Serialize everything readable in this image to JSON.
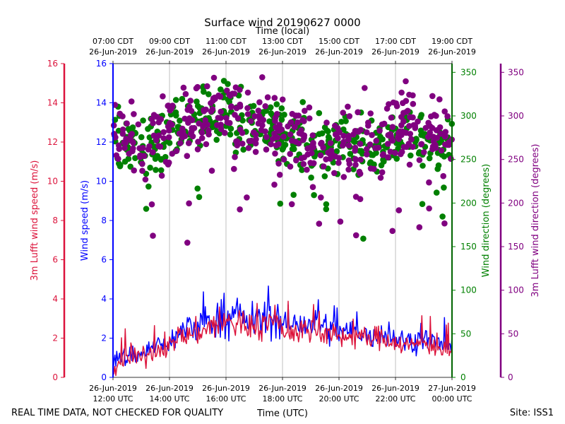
{
  "chart_data": {
    "type": "scatter",
    "title": "Surface wind 20190627 0000",
    "top_axis_label": "Time (local)",
    "bottom_axis_label": "Time (UTC)",
    "footer_left": "REAL TIME DATA, NOT CHECKED FOR QUALITY",
    "footer_right": "Site: ISS1",
    "x_range_utc_hours": [
      12,
      24
    ],
    "bottom_ticks": [
      {
        "t": 12,
        "date": "26-Jun-2019",
        "time": "12:00 UTC"
      },
      {
        "t": 14,
        "date": "26-Jun-2019",
        "time": "14:00 UTC"
      },
      {
        "t": 16,
        "date": "26-Jun-2019",
        "time": "16:00 UTC"
      },
      {
        "t": 18,
        "date": "26-Jun-2019",
        "time": "18:00 UTC"
      },
      {
        "t": 20,
        "date": "26-Jun-2019",
        "time": "20:00 UTC"
      },
      {
        "t": 22,
        "date": "26-Jun-2019",
        "time": "22:00 UTC"
      },
      {
        "t": 24,
        "date": "27-Jun-2019",
        "time": "00:00 UTC"
      }
    ],
    "top_ticks": [
      {
        "t": 12,
        "time": "07:00 CDT",
        "date": "26-Jun-2019"
      },
      {
        "t": 14,
        "time": "09:00 CDT",
        "date": "26-Jun-2019"
      },
      {
        "t": 16,
        "time": "11:00 CDT",
        "date": "26-Jun-2019"
      },
      {
        "t": 18,
        "time": "13:00 CDT",
        "date": "26-Jun-2019"
      },
      {
        "t": 20,
        "time": "15:00 CDT",
        "date": "26-Jun-2019"
      },
      {
        "t": 22,
        "time": "17:00 CDT",
        "date": "26-Jun-2019"
      },
      {
        "t": 24,
        "time": "19:00 CDT",
        "date": "26-Jun-2019"
      }
    ],
    "axes": {
      "lufft_speed": {
        "label": "3m Lufft wind speed (m/s)",
        "range": [
          0,
          16
        ],
        "ticks": [
          "0",
          "2",
          "4",
          "6",
          "8",
          "10",
          "12",
          "14",
          "16"
        ],
        "color": "#dc143c"
      },
      "speed": {
        "label": "Wind speed (m/s)",
        "range": [
          0,
          16
        ],
        "ticks": [
          "0",
          "2",
          "4",
          "6",
          "8",
          "10",
          "12",
          "14",
          "16"
        ],
        "color": "#0000ff"
      },
      "direction": {
        "label": "Wind direction (degrees)",
        "range": [
          0,
          360
        ],
        "ticks": [
          "0",
          "50",
          "100",
          "150",
          "200",
          "250",
          "300",
          "350"
        ],
        "color": "#008000"
      },
      "lufft_direction": {
        "label": "3m Lufft wind direction (degrees)",
        "range": [
          0,
          360
        ],
        "ticks": [
          "0",
          "50",
          "100",
          "150",
          "200",
          "250",
          "300",
          "350"
        ],
        "color": "#800080"
      }
    },
    "series": [
      {
        "name": "Wind speed (m/s)",
        "kind": "line",
        "axis": "speed",
        "color": "#0000ff",
        "envelope": [
          [
            12.0,
            0.7
          ],
          [
            12.5,
            1.1
          ],
          [
            13.0,
            1.2
          ],
          [
            13.5,
            1.6
          ],
          [
            14.0,
            1.8
          ],
          [
            14.5,
            2.4
          ],
          [
            15.0,
            2.6
          ],
          [
            15.5,
            2.9
          ],
          [
            16.0,
            3.1
          ],
          [
            16.5,
            3.0
          ],
          [
            17.0,
            2.9
          ],
          [
            17.5,
            3.1
          ],
          [
            18.0,
            2.8
          ],
          [
            18.5,
            2.6
          ],
          [
            19.0,
            2.8
          ],
          [
            19.5,
            2.6
          ],
          [
            20.0,
            2.2
          ],
          [
            20.5,
            2.4
          ],
          [
            21.0,
            2.1
          ],
          [
            21.5,
            2.3
          ],
          [
            22.0,
            2.0
          ],
          [
            22.5,
            1.8
          ],
          [
            23.0,
            2.0
          ],
          [
            23.5,
            1.7
          ],
          [
            24.0,
            1.5
          ]
        ]
      },
      {
        "name": "3m Lufft wind speed (m/s)",
        "kind": "line",
        "axis": "lufft_speed",
        "color": "#dc143c",
        "envelope": [
          [
            12.0,
            0.6
          ],
          [
            12.5,
            0.9
          ],
          [
            13.0,
            1.0
          ],
          [
            13.5,
            1.4
          ],
          [
            14.0,
            1.6
          ],
          [
            14.5,
            2.1
          ],
          [
            15.0,
            2.3
          ],
          [
            15.5,
            2.6
          ],
          [
            16.0,
            2.8
          ],
          [
            16.5,
            2.7
          ],
          [
            17.0,
            2.6
          ],
          [
            17.5,
            2.8
          ],
          [
            18.0,
            2.5
          ],
          [
            18.5,
            2.3
          ],
          [
            19.0,
            2.5
          ],
          [
            19.5,
            2.3
          ],
          [
            20.0,
            2.0
          ],
          [
            20.5,
            2.2
          ],
          [
            21.0,
            1.9
          ],
          [
            21.5,
            2.1
          ],
          [
            22.0,
            1.8
          ],
          [
            22.5,
            1.6
          ],
          [
            23.0,
            1.8
          ],
          [
            23.5,
            1.5
          ],
          [
            24.0,
            1.3
          ]
        ]
      },
      {
        "name": "Wind direction (degrees)",
        "kind": "scatter",
        "axis": "direction",
        "color": "#008000",
        "envelope": [
          [
            12.0,
            275
          ],
          [
            12.5,
            270
          ],
          [
            13.0,
            262
          ],
          [
            13.5,
            268
          ],
          [
            14.0,
            282
          ],
          [
            14.5,
            292
          ],
          [
            15.0,
            295
          ],
          [
            15.5,
            300
          ],
          [
            16.0,
            300
          ],
          [
            16.5,
            295
          ],
          [
            17.0,
            290
          ],
          [
            17.5,
            285
          ],
          [
            18.0,
            278
          ],
          [
            18.5,
            275
          ],
          [
            19.0,
            272
          ],
          [
            19.5,
            270
          ],
          [
            20.0,
            268
          ],
          [
            20.5,
            262
          ],
          [
            21.0,
            262
          ],
          [
            21.5,
            268
          ],
          [
            22.0,
            278
          ],
          [
            22.5,
            282
          ],
          [
            23.0,
            280
          ],
          [
            23.5,
            270
          ],
          [
            24.0,
            262
          ]
        ]
      },
      {
        "name": "3m Lufft wind direction (degrees)",
        "kind": "scatter",
        "axis": "lufft_direction",
        "color": "#800080",
        "envelope": [
          [
            12.0,
            285
          ],
          [
            12.5,
            278
          ],
          [
            13.0,
            270
          ],
          [
            13.5,
            275
          ],
          [
            14.0,
            285
          ],
          [
            14.5,
            295
          ],
          [
            15.0,
            298
          ],
          [
            15.5,
            305
          ],
          [
            16.0,
            305
          ],
          [
            16.5,
            300
          ],
          [
            17.0,
            295
          ],
          [
            17.5,
            290
          ],
          [
            18.0,
            283
          ],
          [
            18.5,
            280
          ],
          [
            19.0,
            276
          ],
          [
            19.5,
            272
          ],
          [
            20.0,
            270
          ],
          [
            20.5,
            265
          ],
          [
            21.0,
            265
          ],
          [
            21.5,
            272
          ],
          [
            22.0,
            282
          ],
          [
            22.5,
            285
          ],
          [
            23.0,
            283
          ],
          [
            23.5,
            272
          ],
          [
            24.0,
            262
          ]
        ]
      }
    ]
  }
}
